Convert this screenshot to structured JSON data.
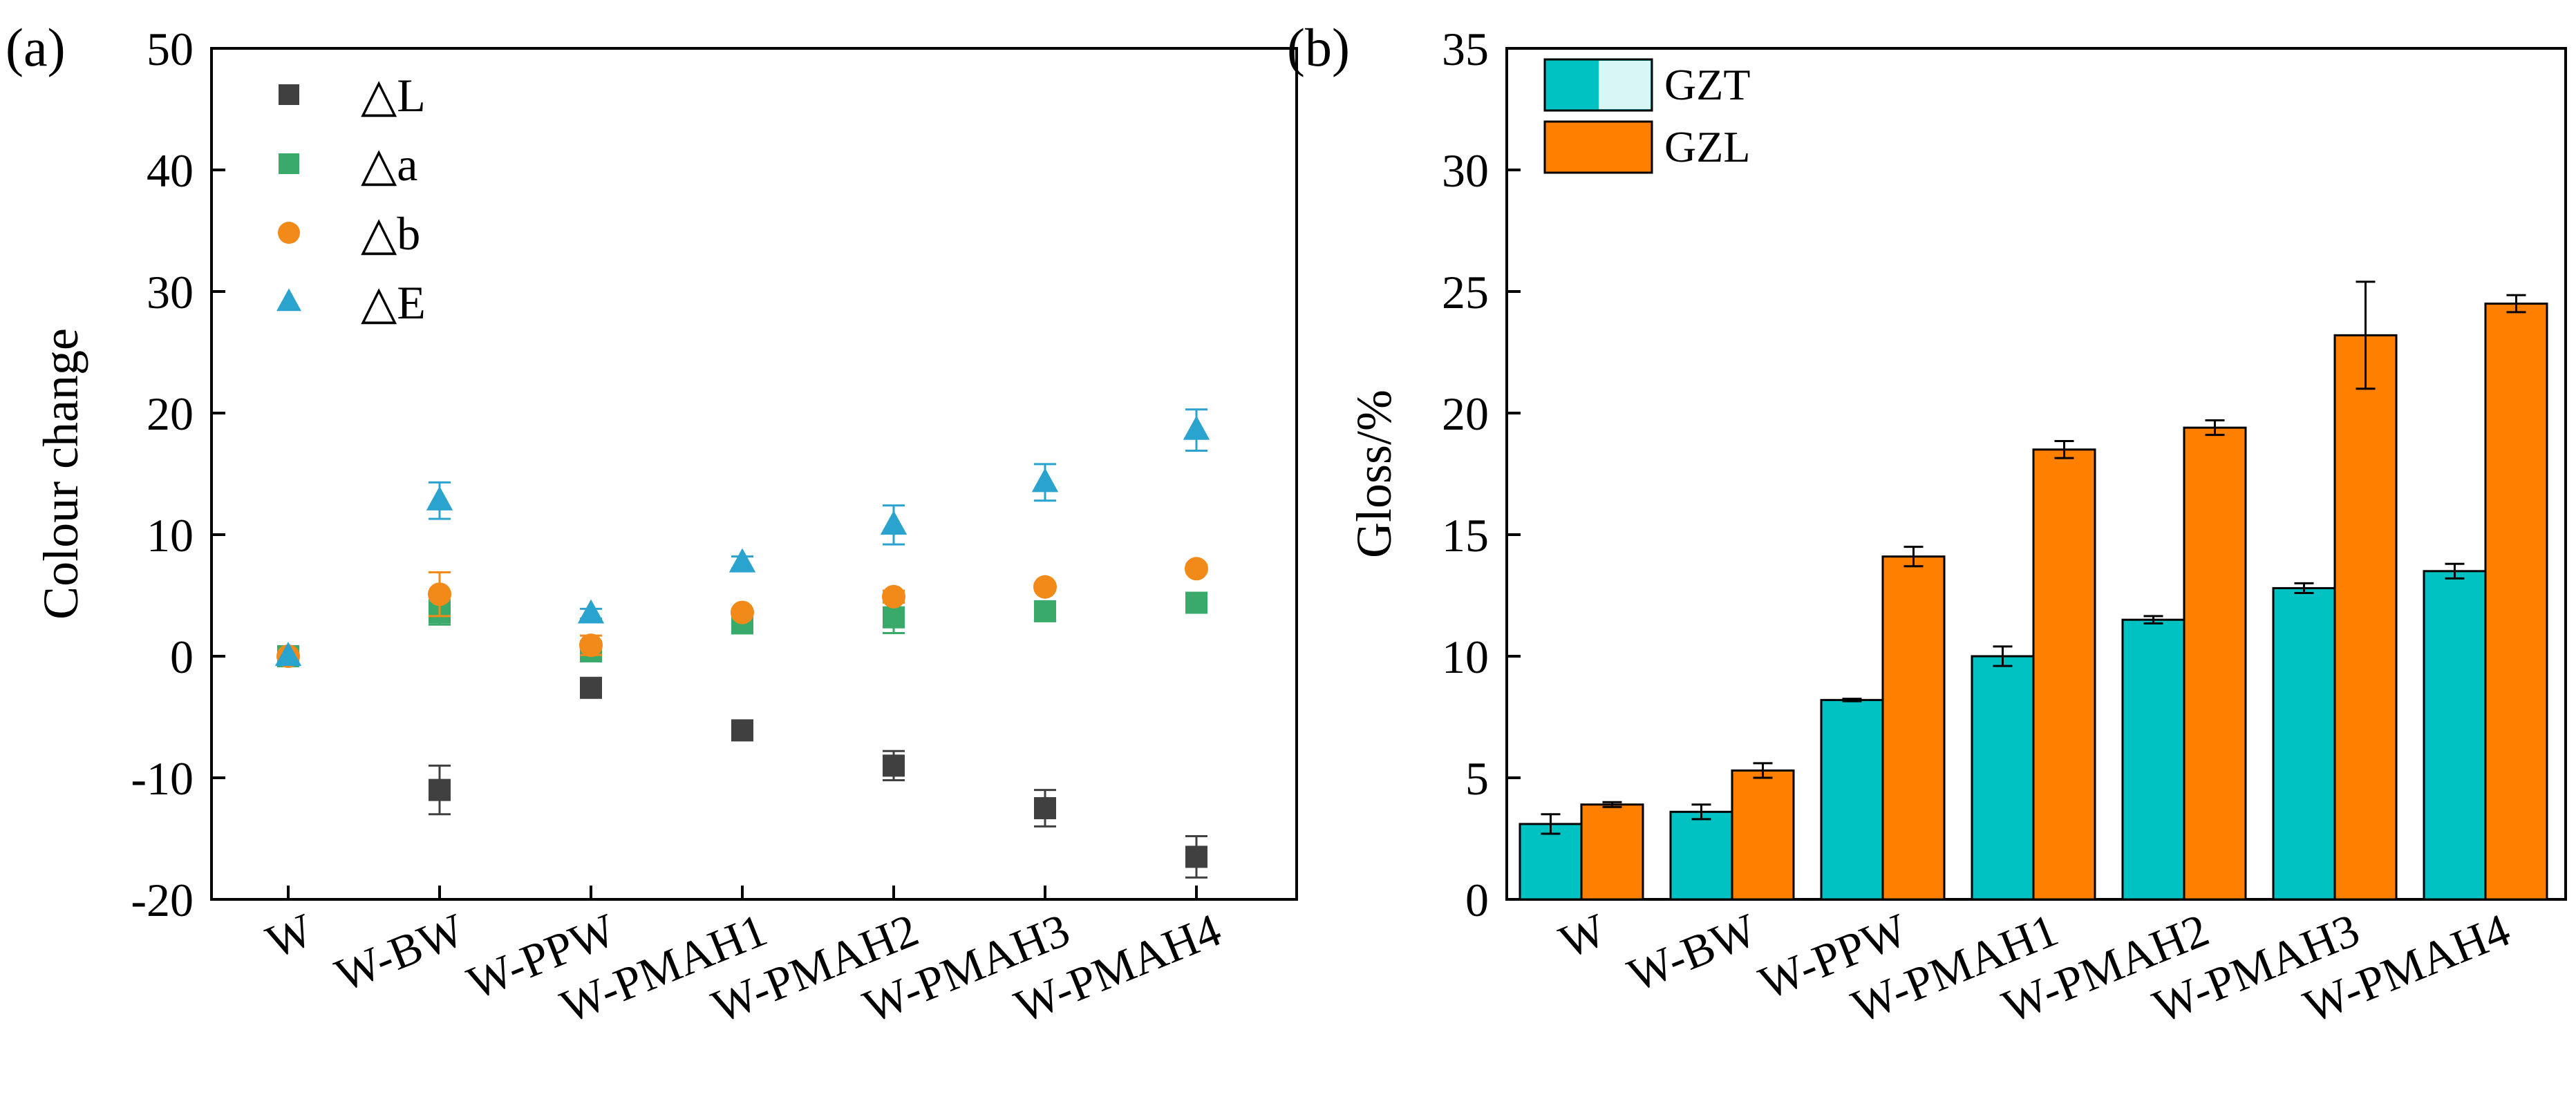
{
  "chart_data": [
    {
      "panel_label": "(a)",
      "type": "scatter",
      "ylabel": "Colour change",
      "xlabel": "",
      "ylim": [
        -20,
        50
      ],
      "yticks": [
        -20,
        -10,
        0,
        10,
        20,
        30,
        40,
        50
      ],
      "categories": [
        "W",
        "W-BW",
        "W-PPW",
        "W-PMAH1",
        "W-PMAH2",
        "W-PMAH3",
        "W-PMAH4"
      ],
      "series": [
        {
          "name": "△L",
          "marker": "square",
          "color": "#404040",
          "values": [
            0,
            -11,
            -2.6,
            -6.1,
            -9.0,
            -12.5,
            -16.5
          ],
          "errors": [
            0,
            2.0,
            0.4,
            0.5,
            1.2,
            1.5,
            1.7
          ]
        },
        {
          "name": "△a",
          "marker": "square",
          "color": "#3aaa6a",
          "values": [
            0,
            3.6,
            0.4,
            2.7,
            3.2,
            3.7,
            4.4
          ],
          "errors": [
            0,
            1.0,
            0.4,
            0.3,
            1.3,
            0.3,
            0.3
          ]
        },
        {
          "name": "△b",
          "marker": "circle",
          "color": "#f28a1a",
          "values": [
            0,
            5.1,
            0.9,
            3.6,
            4.9,
            5.7,
            7.2
          ],
          "errors": [
            0,
            1.8,
            0.8,
            0.3,
            0.5,
            0.3,
            0.3
          ]
        },
        {
          "name": "△E",
          "marker": "triangle",
          "color": "#2ba3cf",
          "values": [
            0,
            12.8,
            3.5,
            7.7,
            10.8,
            14.3,
            18.6
          ],
          "errors": [
            0,
            1.5,
            0.4,
            0.5,
            1.6,
            1.5,
            1.7
          ]
        }
      ]
    },
    {
      "panel_label": "(b)",
      "type": "bar",
      "ylabel": "Gloss/%",
      "xlabel": "",
      "ylim": [
        0,
        35
      ],
      "yticks": [
        0,
        5,
        10,
        15,
        20,
        25,
        30,
        35
      ],
      "categories": [
        "W",
        "W-BW",
        "W-PPW",
        "W-PMAH1",
        "W-PMAH2",
        "W-PMAH3",
        "W-PMAH4"
      ],
      "series": [
        {
          "name": "GZT",
          "color": "#00c2c2",
          "light_color": "#d8f6f6",
          "values": [
            3.1,
            3.6,
            8.2,
            10.0,
            11.5,
            12.8,
            13.5
          ],
          "errors": [
            0.4,
            0.3,
            0.05,
            0.4,
            0.15,
            0.2,
            0.3
          ]
        },
        {
          "name": "GZL",
          "color": "#ff7f00",
          "values": [
            3.9,
            5.3,
            14.1,
            18.5,
            19.4,
            23.2,
            24.5
          ],
          "errors": [
            0.1,
            0.3,
            0.4,
            0.35,
            0.3,
            2.2,
            0.35
          ]
        }
      ]
    }
  ]
}
